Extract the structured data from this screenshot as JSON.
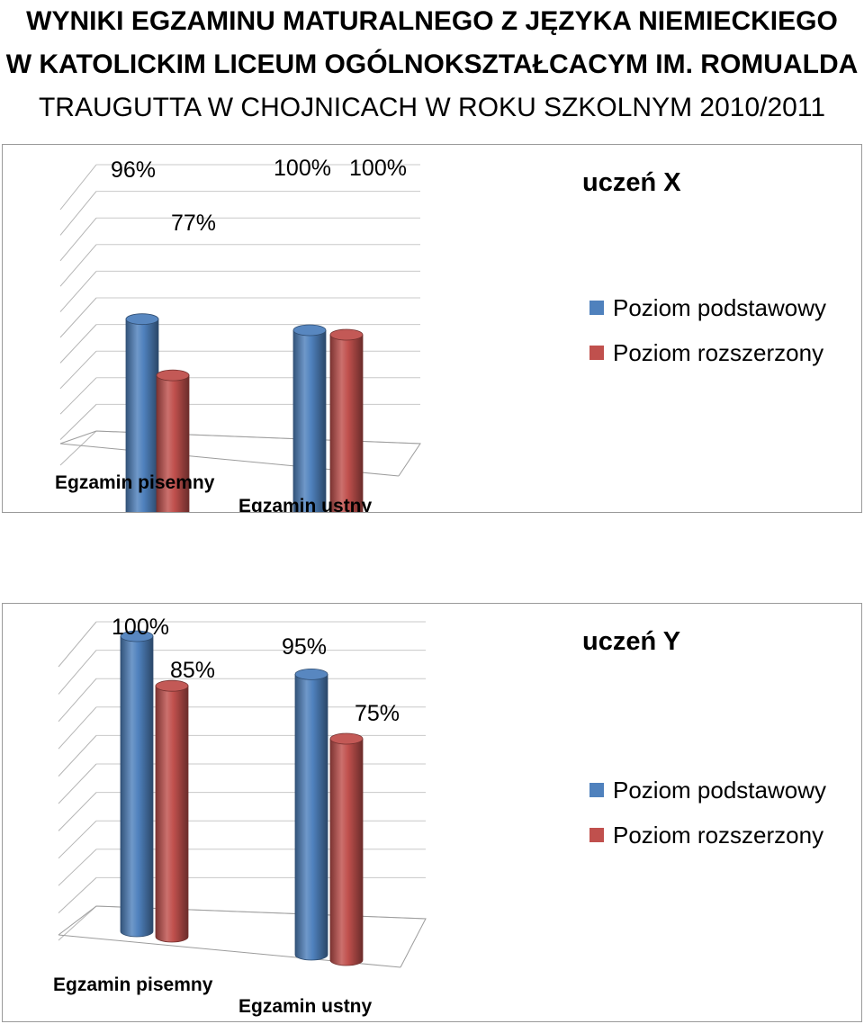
{
  "page": {
    "title_line1": "WYNIKI EGZAMINU MATURALNEGO Z JĘZYKA NIEMIECKIEGO",
    "title_line2": "W KATOLICKIM LICEUM OGÓLNOKSZTAŁCACYM IM. ROMUALDA",
    "title_line3": "TRAUGUTTA W CHOJNICACH W ROKU SZKOLNYM 2010/2011"
  },
  "colors": {
    "series_blue": "#4f81bd",
    "series_red": "#c0504d"
  },
  "chart_data": [
    {
      "type": "bar",
      "title": "uczeń X",
      "categories": [
        "Egzamin pisemny",
        "Egzamin ustny"
      ],
      "series": [
        {
          "name": "Poziom podstawowy",
          "values": [
            96,
            100
          ],
          "labels": [
            "96%",
            "100%"
          ]
        },
        {
          "name": "Poziom rozszerzony",
          "values": [
            77,
            100
          ],
          "labels": [
            "77%",
            "100%"
          ]
        }
      ],
      "ylim": [
        0,
        100
      ],
      "grid": true,
      "style": "3d-cylinder",
      "legend_position": "right"
    },
    {
      "type": "bar",
      "title": "uczeń Y",
      "categories": [
        "Egzamin pisemny",
        "Egzamin ustny"
      ],
      "series": [
        {
          "name": "Poziom podstawowy",
          "values": [
            100,
            95
          ],
          "labels": [
            "100%",
            "95%"
          ]
        },
        {
          "name": "Poziom rozszerzony",
          "values": [
            85,
            75
          ],
          "labels": [
            "85%",
            "75%"
          ]
        }
      ],
      "ylim": [
        0,
        100
      ],
      "grid": true,
      "style": "3d-cylinder",
      "legend_position": "right"
    }
  ]
}
